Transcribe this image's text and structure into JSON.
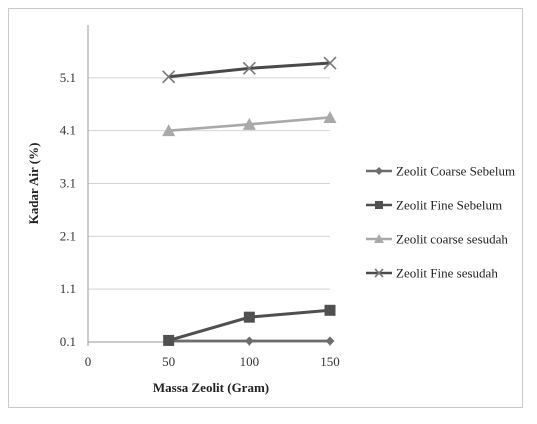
{
  "chart_data": {
    "type": "line",
    "title": "",
    "xlabel": "Massa Zeolit (Gram)",
    "ylabel": "Kadar Air  (%)",
    "x": [
      50,
      100,
      150
    ],
    "xlim": [
      0,
      150
    ],
    "x_ticks": [
      "0",
      "50",
      "100",
      "150"
    ],
    "ylim": [
      0.1,
      6.1
    ],
    "y_ticks": [
      "0.1",
      "1.1",
      "2.1",
      "3.1",
      "4.1",
      "5.1"
    ],
    "grid": "horizontal",
    "legend_position": "right",
    "series": [
      {
        "name": "Zeolit Coarse Sebelum",
        "values": [
          0.12,
          0.12,
          0.12
        ],
        "color": "#6d6d6d",
        "marker": "diamond"
      },
      {
        "name": "Zeolit Fine Sebelum",
        "values": [
          0.13,
          0.57,
          0.7
        ],
        "color": "#505050",
        "marker": "square"
      },
      {
        "name": "Zeolit coarse sesudah",
        "values": [
          4.1,
          4.22,
          4.35
        ],
        "color": "#a9a9a9",
        "marker": "triangle"
      },
      {
        "name": "Zeolit Fine sesudah",
        "values": [
          5.12,
          5.28,
          5.38
        ],
        "color": "#4a4a4a",
        "marker": "x"
      }
    ]
  }
}
